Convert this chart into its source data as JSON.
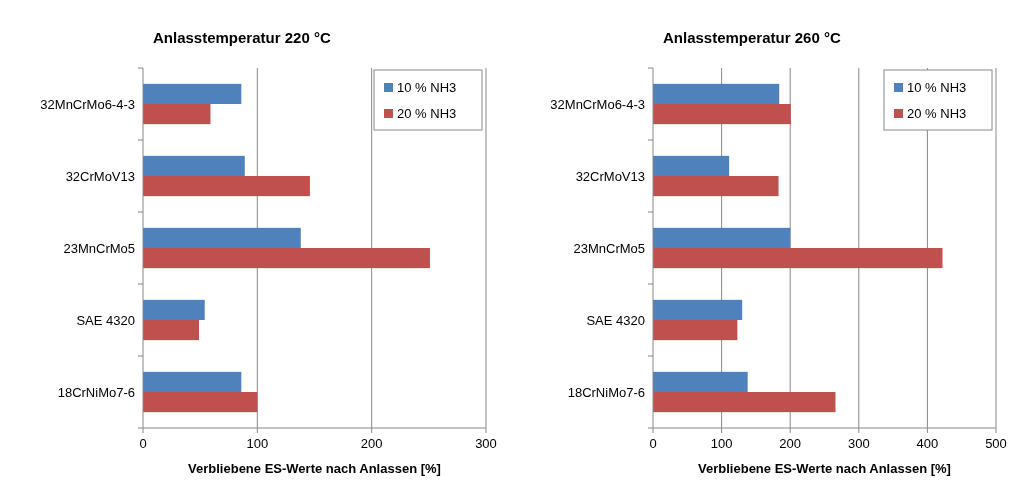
{
  "chart_data": [
    {
      "type": "bar",
      "orientation": "horizontal",
      "title": "Anlasstemperatur 220 °C",
      "xlabel": "Verbliebene ES-Werte nach Anlassen [%]",
      "categories": [
        "32MnCrMo6-4-3",
        "32CrMoV13",
        "23MnCrMo5",
        "SAE 4320",
        "18CrNiMo7-6"
      ],
      "series": [
        {
          "name": "10 % NH3",
          "color": "#4f81bd",
          "values": [
            86,
            89,
            138,
            54,
            86
          ]
        },
        {
          "name": "20 % NH3",
          "color": "#c0504d",
          "values": [
            59,
            146,
            251,
            49,
            100
          ]
        }
      ],
      "xlim": [
        0,
        300
      ],
      "xticks": [
        0,
        100,
        200,
        300
      ],
      "grid": "x",
      "legend": "top right"
    },
    {
      "type": "bar",
      "orientation": "horizontal",
      "title": "Anlasstemperatur 260 °C",
      "xlabel": "Verbliebene ES-Werte nach Anlassen [%]",
      "categories": [
        "32MnCrMo6-4-3",
        "32CrMoV13",
        "23MnCrMo5",
        "SAE 4320",
        "18CrNiMo7-6"
      ],
      "series": [
        {
          "name": "10 % NH3",
          "color": "#4f81bd",
          "values": [
            184,
            111,
            200,
            130,
            138
          ]
        },
        {
          "name": "20 % NH3",
          "color": "#c0504d",
          "values": [
            201,
            183,
            422,
            123,
            266
          ]
        }
      ],
      "xlim": [
        0,
        500
      ],
      "xticks": [
        0,
        100,
        200,
        300,
        400,
        500
      ],
      "grid": "x",
      "legend": "top right"
    }
  ]
}
